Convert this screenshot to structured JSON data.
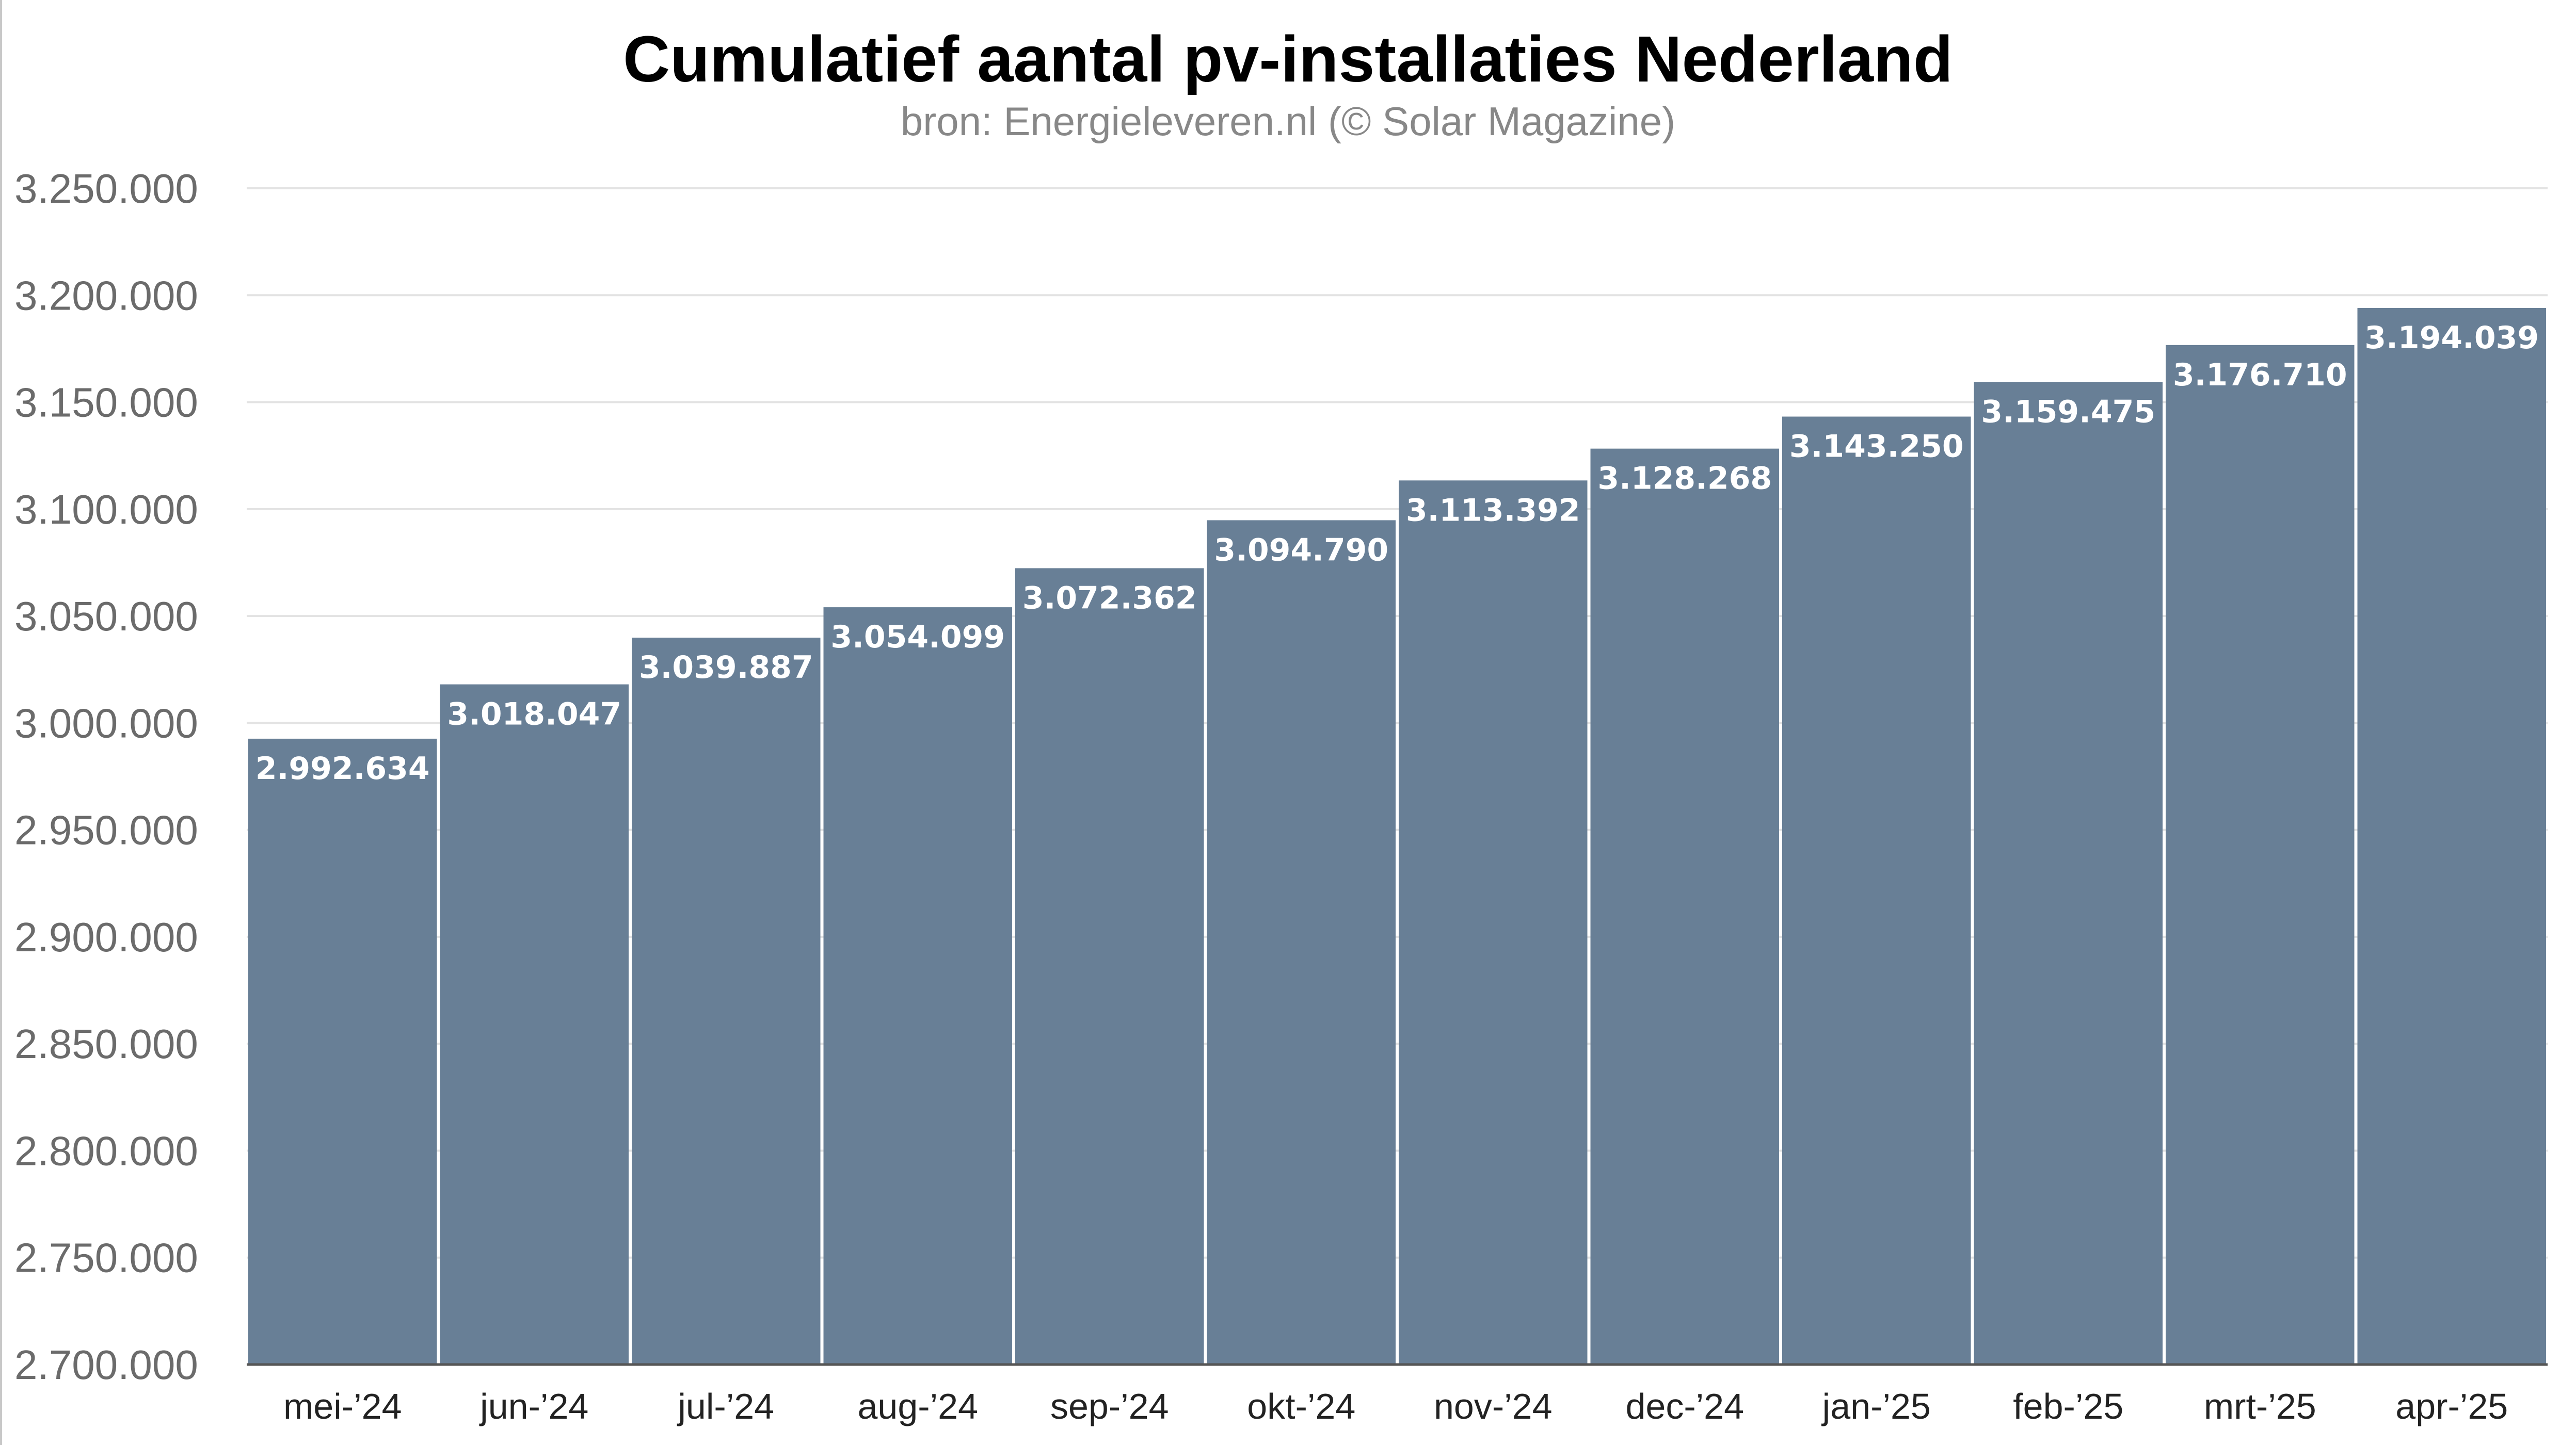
{
  "chart_data": {
    "type": "bar",
    "title": "Cumulatief aantal pv-installaties Nederland",
    "subtitle": "bron: Energieleveren.nl (© Solar Magazine)",
    "xlabel": "",
    "ylabel": "",
    "categories": [
      "mei-’24",
      "jun-’24",
      "jul-’24",
      "aug-’24",
      "sep-’24",
      "okt-’24",
      "nov-’24",
      "dec-’24",
      "jan-’25",
      "feb-’25",
      "mrt-’25",
      "apr-’25"
    ],
    "values": [
      2992634,
      3018047,
      3039887,
      3054099,
      3072362,
      3094790,
      3113392,
      3128268,
      3143250,
      3159475,
      3176710,
      3194039
    ],
    "value_labels": [
      "2.992.634",
      "3.018.047",
      "3.039.887",
      "3.054.099",
      "3.072.362",
      "3.094.790",
      "3.113.392",
      "3.128.268",
      "3.143.250",
      "3.159.475",
      "3.176.710",
      "3.194.039"
    ],
    "ylim": [
      2700000,
      3250000
    ],
    "yticks": [
      2700000,
      2750000,
      2800000,
      2850000,
      2900000,
      2950000,
      3000000,
      3050000,
      3100000,
      3150000,
      3200000,
      3250000
    ],
    "ytick_labels": [
      "2.700.000",
      "2.750.000",
      "2.800.000",
      "2.850.000",
      "2.900.000",
      "2.950.000",
      "3.000.000",
      "3.050.000",
      "3.100.000",
      "3.150.000",
      "3.200.000",
      "3.250.000"
    ],
    "grid": true,
    "legend": "none",
    "bar_color": "#687f96",
    "grid_color": "#e3e3e3"
  }
}
